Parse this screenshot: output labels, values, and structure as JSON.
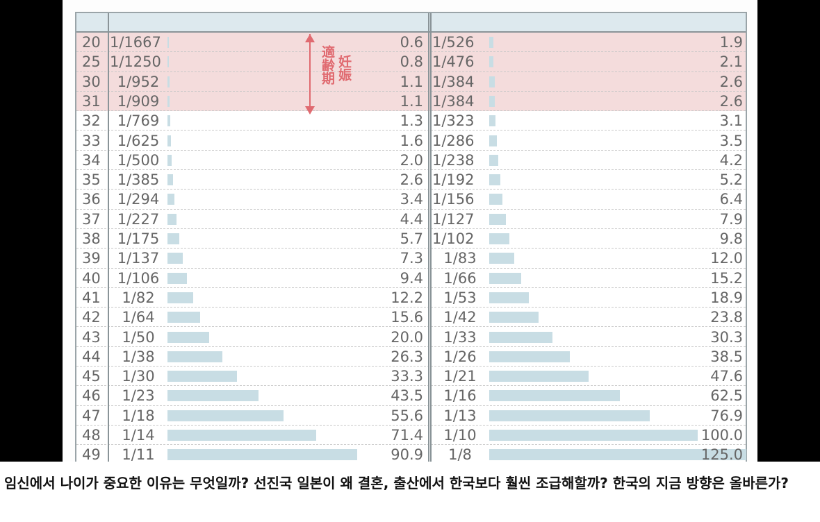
{
  "chart_data": {
    "type": "bar",
    "ages": [
      20,
      25,
      30,
      31,
      32,
      33,
      34,
      35,
      36,
      37,
      38,
      39,
      40,
      41,
      42,
      43,
      44,
      45,
      46,
      47,
      48,
      49
    ],
    "series": [
      {
        "ratios": [
          "1/1667",
          "1/1250",
          "1/952",
          "1/909",
          "1/769",
          "1/625",
          "1/500",
          "1/385",
          "1/294",
          "1/227",
          "1/175",
          "1/137",
          "1/106",
          "1/82",
          "1/64",
          "1/50",
          "1/38",
          "1/30",
          "1/23",
          "1/18",
          "1/14",
          "1/11"
        ],
        "values": [
          0.6,
          0.8,
          1.1,
          1.1,
          1.3,
          1.6,
          2.0,
          2.6,
          3.4,
          4.4,
          5.7,
          7.3,
          9.4,
          12.2,
          15.6,
          20.0,
          26.3,
          33.3,
          43.5,
          55.6,
          71.4,
          90.9
        ]
      },
      {
        "ratios": [
          "1/526",
          "1/476",
          "1/384",
          "1/384",
          "1/323",
          "1/286",
          "1/238",
          "1/192",
          "1/156",
          "1/127",
          "1/102",
          "1/83",
          "1/66",
          "1/53",
          "1/42",
          "1/33",
          "1/26",
          "1/21",
          "1/16",
          "1/13",
          "1/10",
          "1/8"
        ],
        "values": [
          1.9,
          2.1,
          2.6,
          2.6,
          3.1,
          3.5,
          4.2,
          5.2,
          6.4,
          7.9,
          9.8,
          12.0,
          15.2,
          18.9,
          23.8,
          30.3,
          38.5,
          47.6,
          62.5,
          76.9,
          100.0,
          125.0
        ]
      }
    ],
    "highlight_rows": [
      20,
      25,
      30,
      31
    ],
    "annotation": {
      "line1": "適齢期",
      "line2": "妊娠"
    },
    "colors": {
      "bar": "#c8dde4",
      "highlight": "#f4dcdc",
      "annotation": "#e06a70",
      "header": "#dde9ee"
    }
  },
  "caption": "임신에서 나이가 중요한 이유는 무엇일까? 선진국 일본이 왜 결혼, 출산에서 한국보다 훨씬 조급해할까? 한국의 지금 방향은 올바른가?"
}
